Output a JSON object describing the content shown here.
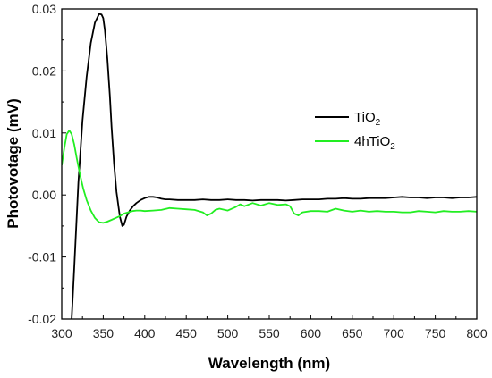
{
  "chart_data": {
    "type": "line",
    "xlabel": "Wavelength (nm)",
    "ylabel": "Photovotage (mV)",
    "xlim": [
      300,
      800
    ],
    "ylim": [
      -0.02,
      0.03
    ],
    "x_ticks": [
      "300",
      "350",
      "400",
      "450",
      "500",
      "550",
      "600",
      "650",
      "700",
      "750",
      "800"
    ],
    "y_ticks": [
      "-0.02",
      "-0.01",
      "0.00",
      "0.01",
      "0.02",
      "0.03"
    ],
    "grid": false,
    "legend_position": "right",
    "legend": [
      {
        "base": "TiO",
        "sub": "2"
      },
      {
        "base": "4hTiO",
        "sub": "2"
      }
    ],
    "series": [
      {
        "color": "#000000",
        "x": [
          312,
          315,
          320,
          325,
          330,
          335,
          340,
          345,
          348,
          350,
          352,
          355,
          358,
          360,
          363,
          366,
          370,
          373,
          375,
          378,
          382,
          386,
          390,
          395,
          400,
          405,
          410,
          415,
          420,
          425,
          430,
          440,
          450,
          460,
          470,
          480,
          490,
          500,
          510,
          520,
          530,
          540,
          550,
          560,
          570,
          580,
          590,
          600,
          610,
          620,
          630,
          640,
          650,
          660,
          670,
          680,
          690,
          700,
          710,
          720,
          730,
          740,
          750,
          760,
          770,
          780,
          790,
          800
        ],
        "y": [
          -0.02,
          -0.012,
          0.002,
          0.012,
          0.019,
          0.0245,
          0.0278,
          0.0292,
          0.0291,
          0.0285,
          0.0265,
          0.022,
          0.016,
          0.011,
          0.005,
          0.0005,
          -0.0035,
          -0.005,
          -0.0048,
          -0.0035,
          -0.0025,
          -0.0018,
          -0.0013,
          -0.0008,
          -0.0005,
          -0.0003,
          -0.0003,
          -0.0004,
          -0.0006,
          -0.0007,
          -0.0007,
          -0.0008,
          -0.0008,
          -0.0008,
          -0.0007,
          -0.0008,
          -0.0008,
          -0.0007,
          -0.0008,
          -0.0008,
          -0.0009,
          -0.0008,
          -0.0008,
          -0.0008,
          -0.0009,
          -0.0008,
          -0.0007,
          -0.0007,
          -0.0007,
          -0.0006,
          -0.0006,
          -0.0005,
          -0.0006,
          -0.0006,
          -0.0005,
          -0.0005,
          -0.0005,
          -0.0004,
          -0.0003,
          -0.0004,
          -0.0004,
          -0.0005,
          -0.0004,
          -0.0004,
          -0.0005,
          -0.0004,
          -0.0004,
          -0.0003
        ]
      },
      {
        "color": "#22ee22",
        "x": [
          300,
          303,
          306,
          309,
          312,
          315,
          318,
          322,
          326,
          330,
          335,
          340,
          345,
          350,
          355,
          360,
          365,
          370,
          375,
          380,
          385,
          390,
          395,
          400,
          410,
          420,
          430,
          440,
          450,
          460,
          470,
          475,
          480,
          485,
          490,
          500,
          510,
          515,
          520,
          530,
          540,
          550,
          560,
          570,
          575,
          580,
          585,
          590,
          600,
          610,
          620,
          630,
          640,
          650,
          660,
          670,
          680,
          690,
          700,
          710,
          720,
          730,
          740,
          750,
          760,
          770,
          780,
          790,
          800
        ],
        "y": [
          0.0048,
          0.0075,
          0.0098,
          0.0104,
          0.0098,
          0.0082,
          0.006,
          0.0033,
          0.001,
          -0.0008,
          -0.0025,
          -0.0037,
          -0.0044,
          -0.0045,
          -0.0043,
          -0.004,
          -0.0037,
          -0.0034,
          -0.003,
          -0.0028,
          -0.0026,
          -0.0025,
          -0.0025,
          -0.0026,
          -0.0025,
          -0.0024,
          -0.0021,
          -0.0022,
          -0.0023,
          -0.0024,
          -0.0028,
          -0.0033,
          -0.003,
          -0.0024,
          -0.0022,
          -0.0025,
          -0.0019,
          -0.0015,
          -0.0018,
          -0.0013,
          -0.0017,
          -0.0013,
          -0.0016,
          -0.0015,
          -0.0018,
          -0.003,
          -0.0033,
          -0.0028,
          -0.0026,
          -0.0026,
          -0.0027,
          -0.0022,
          -0.0025,
          -0.0027,
          -0.0025,
          -0.0027,
          -0.0026,
          -0.0027,
          -0.0027,
          -0.0028,
          -0.0028,
          -0.0026,
          -0.0027,
          -0.0028,
          -0.0026,
          -0.0027,
          -0.0027,
          -0.0026,
          -0.0027
        ]
      }
    ]
  }
}
